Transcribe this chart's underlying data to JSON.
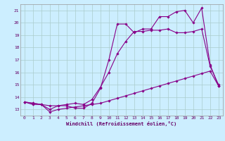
{
  "xlabel": "Windchill (Refroidissement éolien,°C)",
  "background_color": "#cceeff",
  "grid_color": "#aacccc",
  "line_color": "#880088",
  "xlim": [
    -0.5,
    23.5
  ],
  "ylim": [
    12.5,
    21.5
  ],
  "xticks": [
    0,
    1,
    2,
    3,
    4,
    5,
    6,
    7,
    8,
    9,
    10,
    11,
    12,
    13,
    14,
    15,
    16,
    17,
    18,
    19,
    20,
    21,
    22,
    23
  ],
  "yticks": [
    13,
    14,
    15,
    16,
    17,
    18,
    19,
    20,
    21
  ],
  "series1_x": [
    0,
    1,
    2,
    3,
    4,
    5,
    6,
    7,
    8,
    9,
    10,
    11,
    12,
    13,
    14,
    15,
    16,
    17,
    18,
    19,
    20,
    21,
    22,
    23
  ],
  "series1_y": [
    13.6,
    13.4,
    13.4,
    13.3,
    13.3,
    13.3,
    13.1,
    13.1,
    13.5,
    14.7,
    17.0,
    19.9,
    19.9,
    19.2,
    19.5,
    19.5,
    20.5,
    20.5,
    20.9,
    21.0,
    20.0,
    21.2,
    16.6,
    14.9
  ],
  "series2_x": [
    0,
    1,
    2,
    3,
    4,
    5,
    6,
    7,
    8,
    9,
    10,
    11,
    12,
    13,
    14,
    15,
    16,
    17,
    18,
    19,
    20,
    21,
    22,
    23
  ],
  "series2_y": [
    13.6,
    13.5,
    13.4,
    13.0,
    13.3,
    13.4,
    13.5,
    13.4,
    13.8,
    14.8,
    16.0,
    17.5,
    18.5,
    19.3,
    19.3,
    19.4,
    19.4,
    19.5,
    19.2,
    19.2,
    19.3,
    19.5,
    16.5,
    15.0
  ],
  "series3_x": [
    0,
    1,
    2,
    3,
    4,
    5,
    6,
    7,
    8,
    9,
    10,
    11,
    12,
    13,
    14,
    15,
    16,
    17,
    18,
    19,
    20,
    21,
    22,
    23
  ],
  "series3_y": [
    13.6,
    13.5,
    13.4,
    12.8,
    13.0,
    13.1,
    13.2,
    13.3,
    13.4,
    13.5,
    13.7,
    13.9,
    14.1,
    14.3,
    14.5,
    14.7,
    14.9,
    15.1,
    15.3,
    15.5,
    15.7,
    15.9,
    16.1,
    14.9
  ]
}
